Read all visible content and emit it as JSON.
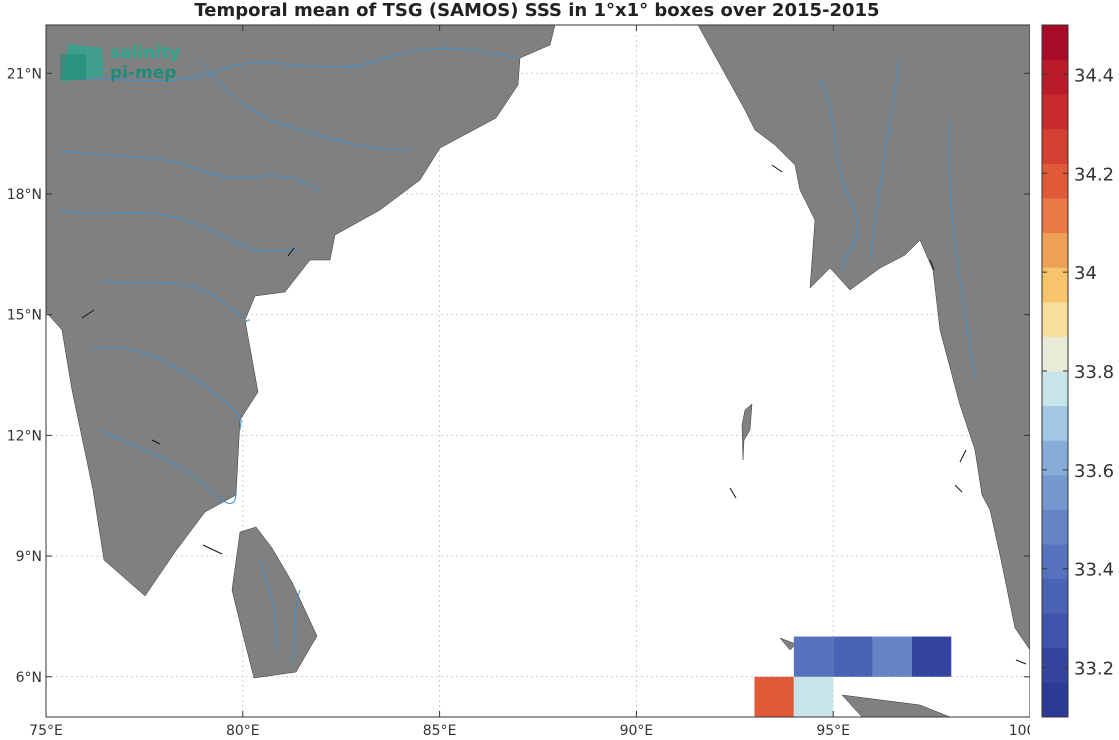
{
  "title": "Temporal mean of TSG (SAMOS) SSS in 1°x1° boxes over 2015-2015",
  "logo": {
    "line1": "salinity",
    "line2": "pi-mep"
  },
  "map": {
    "lon_range": [
      75,
      100
    ],
    "lat_range": [
      5,
      22.2
    ],
    "lon_ticks": [
      75,
      80,
      85,
      90,
      95,
      100
    ],
    "lat_ticks": [
      6,
      9,
      12,
      15,
      18,
      21
    ],
    "lon_tick_labels": [
      "75°E",
      "80°E",
      "85°E",
      "90°E",
      "95°E",
      "100°E"
    ],
    "lat_tick_labels": [
      "6°N",
      "9°N",
      "12°N",
      "15°N",
      "18°N",
      "21°N"
    ],
    "land_color": "#808080",
    "river_color": "#3a8fd0",
    "grid": true
  },
  "chart_data": {
    "type": "heatmap",
    "title": "Temporal mean of TSG (SAMOS) SSS in 1°x1° boxes over 2015-2015",
    "cell_size_deg": 1,
    "cells": [
      {
        "lon": 93,
        "lat": 5,
        "value": 34.21
      },
      {
        "lon": 94,
        "lat": 5,
        "value": 33.77
      },
      {
        "lon": 94,
        "lat": 6,
        "value": 33.38
      },
      {
        "lon": 95,
        "lat": 6,
        "value": 33.31
      },
      {
        "lon": 96,
        "lat": 6,
        "value": 33.45
      },
      {
        "lon": 97,
        "lat": 6,
        "value": 33.17
      }
    ],
    "colorbar": {
      "min": 33.1,
      "max": 34.5,
      "ticks": [
        33.2,
        33.4,
        33.6,
        33.8,
        34,
        34.2,
        34.4
      ],
      "tick_labels": [
        "33.2",
        "33.4",
        "33.6",
        "33.8",
        "34",
        "34.2",
        "34.4"
      ],
      "colors": [
        "#2b3a93",
        "#3445a0",
        "#3e53ab",
        "#4a62b3",
        "#5672bd",
        "#6584c6",
        "#7598cf",
        "#88acd8",
        "#a3c6e2",
        "#c7e4e9",
        "#e9ebd8",
        "#f6df9a",
        "#f5c46b",
        "#f0a055",
        "#ea7b46",
        "#e05a38",
        "#d33f30",
        "#c82b2c",
        "#b91b2a",
        "#a80b28"
      ]
    }
  }
}
